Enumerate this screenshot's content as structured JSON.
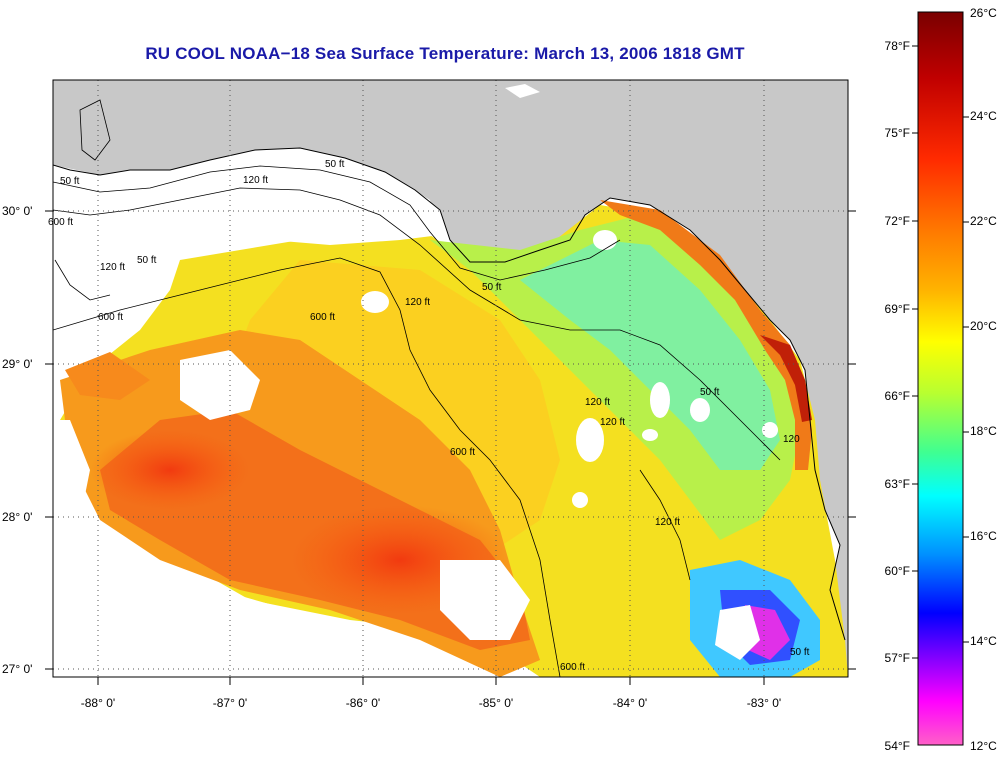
{
  "title": "RU COOL  NOAA−18  Sea Surface Temperature:  March 13, 2006 1818 GMT",
  "map": {
    "lat_labels": [
      "30° 0'",
      "29° 0'",
      "28° 0'",
      "27° 0'"
    ],
    "lon_labels": [
      "-88° 0'",
      "-87° 0'",
      "-86° 0'",
      "-85° 0'",
      "-84° 0'",
      "-83° 0'"
    ],
    "contour_labels": [
      "50 ft",
      "120 ft",
      "600 ft",
      "50 ft",
      "120 ft",
      "600 ft",
      "50 ft",
      "120 ft",
      "600 ft",
      "50 ft",
      "120 ft",
      "600 ft",
      "50 ft",
      "120 ft",
      "600 ft",
      "50 ft",
      "120 ft",
      "120"
    ],
    "colors": {
      "land": "#c8c8c8",
      "cloud": "#ffffff",
      "grid": "#555555"
    }
  },
  "colorbar": {
    "celsius": [
      "26°C",
      "24°C",
      "22°C",
      "20°C",
      "18°C",
      "16°C",
      "14°C",
      "12°C"
    ],
    "fahrenheit": [
      "78°F",
      "75°F",
      "72°F",
      "69°F",
      "66°F",
      "63°F",
      "60°F",
      "57°F",
      "54°F"
    ],
    "gradient": [
      "#7a0000",
      "#c80000",
      "#ff2000",
      "#ff7800",
      "#ffb000",
      "#ffff00",
      "#b8ff30",
      "#40ff90",
      "#00ffff",
      "#0090ff",
      "#0000ff",
      "#8000ff",
      "#ff00ff",
      "#ff60c0"
    ]
  }
}
